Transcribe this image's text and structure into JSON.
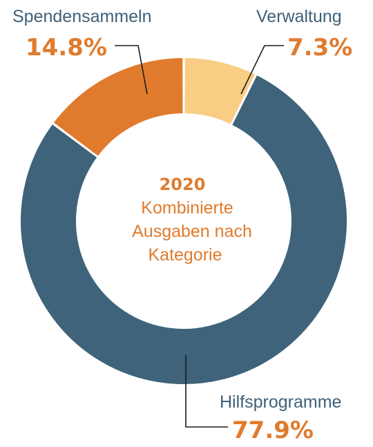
{
  "chart_data": {
    "type": "pie",
    "subtype": "donut",
    "start_angle_deg": 0,
    "direction": "counter-clockwise",
    "slices": [
      {
        "key": "verwaltung",
        "label": "Verwaltung",
        "value": 7.3,
        "value_label": "7.3%",
        "color": "#f9cd84"
      },
      {
        "key": "spendensammeln",
        "label": "Spendensammeln",
        "value": 14.8,
        "value_label": "14.8%",
        "color": "#e07b2d"
      },
      {
        "key": "hilfsprogramme",
        "label": "Hilfsprogramme",
        "value": 77.9,
        "value_label": "77.9%",
        "color": "#3e637a"
      }
    ],
    "center_text": {
      "year": "2020",
      "lines": [
        "Kombinierte",
        "Ausgaben nach",
        "Kategorie"
      ]
    },
    "label_color": "#3f6079",
    "value_color": "#e07b2d",
    "slice_border_color": "#ffffff"
  }
}
